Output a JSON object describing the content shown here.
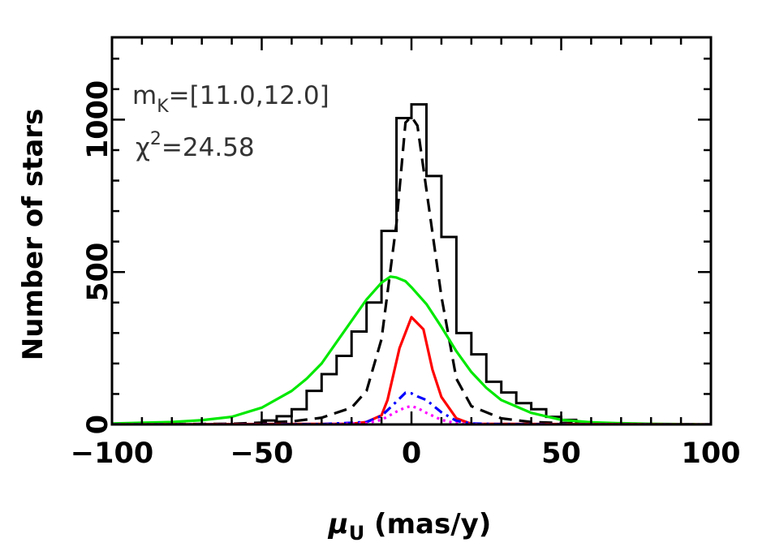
{
  "chart_data": {
    "type": "line",
    "xlabel_symbol": "μ",
    "xlabel_subscript": "U",
    "xlabel_rest": " (mas/y)",
    "ylabel": "Number of stars",
    "xlim": [
      -100,
      100
    ],
    "ylim": [
      0,
      1270
    ],
    "x_ticks": [
      -100,
      -50,
      0,
      50,
      100
    ],
    "x_tick_labels": [
      "−100",
      "−50",
      "0",
      "50",
      "100"
    ],
    "y_ticks": [
      0,
      500,
      1000
    ],
    "y_tick_labels": [
      "0",
      "500",
      "1000"
    ],
    "x_minor_step": 10,
    "y_minor_step": 100,
    "annotations": {
      "mag_prefix": "m",
      "mag_sub": "K",
      "mag_rest": "=[11.0,12.0]",
      "chi_prefix": "χ",
      "chi_sup": "2",
      "chi_rest": "=24.58"
    },
    "histogram": {
      "color": "#000000",
      "bin_edges": [
        -100,
        -95,
        -90,
        -85,
        -80,
        -75,
        -70,
        -65,
        -60,
        -55,
        -50,
        -45,
        -40,
        -35,
        -30,
        -25,
        -20,
        -15,
        -10,
        -5,
        0,
        5,
        10,
        15,
        20,
        25,
        30,
        35,
        40,
        45,
        50,
        55,
        60,
        65,
        70,
        75,
        80,
        85,
        90,
        95,
        100
      ],
      "counts": [
        0,
        0,
        0,
        0,
        0,
        0,
        0,
        0,
        0,
        0,
        13,
        27,
        50,
        110,
        165,
        225,
        305,
        400,
        635,
        1005,
        1050,
        815,
        615,
        300,
        230,
        140,
        105,
        70,
        50,
        25,
        15,
        8,
        5,
        2,
        0,
        0,
        0,
        0,
        0,
        0
      ]
    },
    "series": [
      {
        "style": "dashed",
        "color": "#000000",
        "x": [
          -100,
          -60,
          -40,
          -30,
          -20,
          -15,
          -10,
          -5,
          -2,
          0,
          2,
          5,
          10,
          15,
          20,
          30,
          40,
          60,
          100
        ],
        "y": [
          0,
          2,
          10,
          22,
          55,
          110,
          280,
          660,
          990,
          1010,
          980,
          770,
          420,
          150,
          60,
          20,
          8,
          2,
          0
        ]
      },
      {
        "style": "solid",
        "color": "#00e800",
        "x": [
          -100,
          -80,
          -70,
          -60,
          -50,
          -40,
          -35,
          -30,
          -25,
          -20,
          -15,
          -10,
          -7,
          -5,
          -2,
          0,
          5,
          10,
          15,
          20,
          25,
          30,
          40,
          50,
          60,
          70,
          80,
          100
        ],
        "y": [
          3,
          8,
          14,
          25,
          55,
          110,
          150,
          200,
          270,
          340,
          410,
          465,
          485,
          482,
          470,
          450,
          395,
          320,
          240,
          172,
          120,
          80,
          38,
          15,
          7,
          4,
          2,
          0
        ]
      },
      {
        "style": "solid",
        "color": "#ff0000",
        "x": [
          -100,
          -20,
          -15,
          -10,
          -8,
          -4,
          0,
          4,
          7,
          10,
          15,
          20,
          100
        ],
        "y": [
          0,
          2,
          8,
          30,
          80,
          250,
          352,
          312,
          180,
          90,
          20,
          2,
          0
        ]
      },
      {
        "style": "dashdot",
        "color": "#0000ff",
        "x": [
          -100,
          -60,
          -30,
          -15,
          -10,
          -5,
          -2,
          0,
          2,
          5,
          10,
          15,
          20,
          30,
          60,
          100
        ],
        "y": [
          0,
          0,
          1,
          8,
          28,
          75,
          104,
          102,
          92,
          80,
          40,
          12,
          3,
          1,
          0,
          0
        ]
      },
      {
        "style": "dotted",
        "color": "#ff00ff",
        "x": [
          -100,
          -60,
          -30,
          -15,
          -10,
          -5,
          -2,
          0,
          2,
          5,
          10,
          15,
          20,
          30,
          60,
          100
        ],
        "y": [
          0,
          0,
          0,
          4,
          15,
          42,
          56,
          60,
          54,
          38,
          15,
          4,
          1,
          0,
          0,
          0
        ]
      }
    ]
  }
}
